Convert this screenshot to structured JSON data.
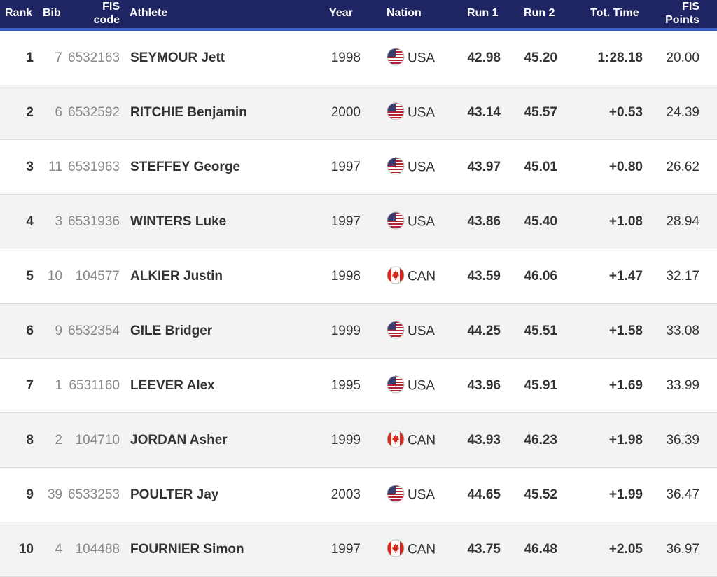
{
  "headers": {
    "rank": "Rank",
    "bib": "Bib",
    "fis_code_1": "FIS",
    "fis_code_2": "code",
    "athlete": "Athlete",
    "year": "Year",
    "nation": "Nation",
    "run1": "Run 1",
    "run2": "Run 2",
    "tot_time": "Tot. Time",
    "fis_points_1": "FIS",
    "fis_points_2": "Points"
  },
  "colors": {
    "header_bg": "#1f2562",
    "header_accent": "#3a5cc7",
    "row_alt": "#f3f3f3"
  },
  "rows": [
    {
      "rank": "1",
      "bib": "7",
      "fis_code": "6532163",
      "athlete": "SEYMOUR Jett",
      "year": "1998",
      "flag": "usa-flag-icon",
      "nation": "USA",
      "run1": "42.98",
      "run2": "45.20",
      "tot": "1:28.18",
      "points": "20.00"
    },
    {
      "rank": "2",
      "bib": "6",
      "fis_code": "6532592",
      "athlete": "RITCHIE Benjamin",
      "year": "2000",
      "flag": "usa-flag-icon",
      "nation": "USA",
      "run1": "43.14",
      "run2": "45.57",
      "tot": "+0.53",
      "points": "24.39"
    },
    {
      "rank": "3",
      "bib": "11",
      "fis_code": "6531963",
      "athlete": "STEFFEY George",
      "year": "1997",
      "flag": "usa-flag-icon",
      "nation": "USA",
      "run1": "43.97",
      "run2": "45.01",
      "tot": "+0.80",
      "points": "26.62"
    },
    {
      "rank": "4",
      "bib": "3",
      "fis_code": "6531936",
      "athlete": "WINTERS Luke",
      "year": "1997",
      "flag": "usa-flag-icon",
      "nation": "USA",
      "run1": "43.86",
      "run2": "45.40",
      "tot": "+1.08",
      "points": "28.94"
    },
    {
      "rank": "5",
      "bib": "10",
      "fis_code": "104577",
      "athlete": "ALKIER Justin",
      "year": "1998",
      "flag": "canada-flag-icon",
      "nation": "CAN",
      "run1": "43.59",
      "run2": "46.06",
      "tot": "+1.47",
      "points": "32.17"
    },
    {
      "rank": "6",
      "bib": "9",
      "fis_code": "6532354",
      "athlete": "GILE Bridger",
      "year": "1999",
      "flag": "usa-flag-icon",
      "nation": "USA",
      "run1": "44.25",
      "run2": "45.51",
      "tot": "+1.58",
      "points": "33.08"
    },
    {
      "rank": "7",
      "bib": "1",
      "fis_code": "6531160",
      "athlete": "LEEVER Alex",
      "year": "1995",
      "flag": "usa-flag-icon",
      "nation": "USA",
      "run1": "43.96",
      "run2": "45.91",
      "tot": "+1.69",
      "points": "33.99"
    },
    {
      "rank": "8",
      "bib": "2",
      "fis_code": "104710",
      "athlete": "JORDAN Asher",
      "year": "1999",
      "flag": "canada-flag-icon",
      "nation": "CAN",
      "run1": "43.93",
      "run2": "46.23",
      "tot": "+1.98",
      "points": "36.39"
    },
    {
      "rank": "9",
      "bib": "39",
      "fis_code": "6533253",
      "athlete": "POULTER Jay",
      "year": "2003",
      "flag": "usa-flag-icon",
      "nation": "USA",
      "run1": "44.65",
      "run2": "45.52",
      "tot": "+1.99",
      "points": "36.47"
    },
    {
      "rank": "10",
      "bib": "4",
      "fis_code": "104488",
      "athlete": "FOURNIER Simon",
      "year": "1997",
      "flag": "canada-flag-icon",
      "nation": "CAN",
      "run1": "43.75",
      "run2": "46.48",
      "tot": "+2.05",
      "points": "36.97"
    }
  ]
}
